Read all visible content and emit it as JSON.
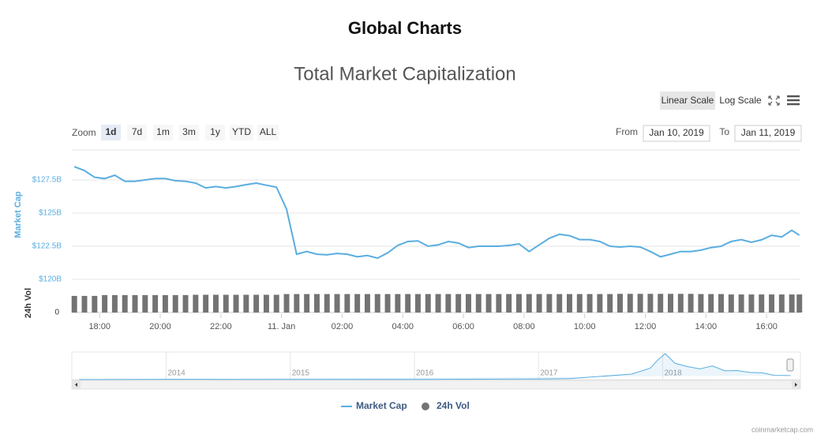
{
  "header": {
    "title": "Global Charts"
  },
  "controls": {
    "zoom_label": "Zoom",
    "zoom_buttons": [
      "1d",
      "7d",
      "1m",
      "3m",
      "1y",
      "YTD",
      "ALL"
    ],
    "selected_zoom": 0,
    "from_label": "From",
    "from": "Jan 10, 2019",
    "to_label": "To",
    "to": "Jan 11, 2019",
    "scale_buttons": [
      "Linear Scale",
      "Log Scale"
    ],
    "selected_scale": 0
  },
  "chart_data": {
    "type": "line",
    "title": "Total Market Capitalization",
    "y_label": "Market Cap",
    "y2_label": "24h Vol",
    "x": [
      "2019-01-10 17:10",
      "2019-01-10 17:30",
      "2019-01-10 17:50",
      "2019-01-10 18:10",
      "2019-01-10 18:30",
      "2019-01-10 18:50",
      "2019-01-10 19:10",
      "2019-01-10 19:30",
      "2019-01-10 19:50",
      "2019-01-10 20:10",
      "2019-01-10 20:30",
      "2019-01-10 20:50",
      "2019-01-10 21:10",
      "2019-01-10 21:30",
      "2019-01-10 21:50",
      "2019-01-10 22:10",
      "2019-01-10 22:30",
      "2019-01-10 22:50",
      "2019-01-10 23:10",
      "2019-01-10 23:30",
      "2019-01-10 23:50",
      "2019-01-11 00:10",
      "2019-01-11 00:30",
      "2019-01-11 00:50",
      "2019-01-11 01:10",
      "2019-01-11 01:30",
      "2019-01-11 01:50",
      "2019-01-11 02:10",
      "2019-01-11 02:30",
      "2019-01-11 02:50",
      "2019-01-11 03:10",
      "2019-01-11 03:30",
      "2019-01-11 03:50",
      "2019-01-11 04:10",
      "2019-01-11 04:30",
      "2019-01-11 04:50",
      "2019-01-11 05:10",
      "2019-01-11 05:30",
      "2019-01-11 05:50",
      "2019-01-11 06:10",
      "2019-01-11 06:30",
      "2019-01-11 06:50",
      "2019-01-11 07:10",
      "2019-01-11 07:30",
      "2019-01-11 07:50",
      "2019-01-11 08:10",
      "2019-01-11 08:30",
      "2019-01-11 08:50",
      "2019-01-11 09:10",
      "2019-01-11 09:30",
      "2019-01-11 09:50",
      "2019-01-11 10:10",
      "2019-01-11 10:30",
      "2019-01-11 10:50",
      "2019-01-11 11:10",
      "2019-01-11 11:30",
      "2019-01-11 11:50",
      "2019-01-11 12:10",
      "2019-01-11 12:30",
      "2019-01-11 12:50",
      "2019-01-11 13:10",
      "2019-01-11 13:30",
      "2019-01-11 13:50",
      "2019-01-11 14:10",
      "2019-01-11 14:30",
      "2019-01-11 14:50",
      "2019-01-11 15:10",
      "2019-01-11 15:30",
      "2019-01-11 15:50",
      "2019-01-11 16:10",
      "2019-01-11 16:30",
      "2019-01-11 16:50",
      "2019-01-11 17:05"
    ],
    "series": [
      {
        "name": "Market Cap",
        "color": "#5aade0",
        "values": [
          128500000000,
          128200000000,
          127700000000,
          127600000000,
          127860000000,
          127400000000,
          127400000000,
          127500000000,
          127600000000,
          127600000000,
          127440000000,
          127400000000,
          127260000000,
          126900000000,
          127000000000,
          126900000000,
          127000000000,
          127140000000,
          127260000000,
          127100000000,
          126960000000,
          125300000000,
          121900000000,
          122100000000,
          121900000000,
          121850000000,
          121960000000,
          121900000000,
          121700000000,
          121800000000,
          121600000000,
          122000000000,
          122560000000,
          122860000000,
          122900000000,
          122500000000,
          122600000000,
          122860000000,
          122740000000,
          122400000000,
          122500000000,
          122500000000,
          122500000000,
          122560000000,
          122680000000,
          122100000000,
          122600000000,
          123100000000,
          123400000000,
          123300000000,
          123000000000,
          123000000000,
          122860000000,
          122500000000,
          122440000000,
          122500000000,
          122440000000,
          122100000000,
          121700000000,
          121900000000,
          122100000000,
          122100000000,
          122200000000,
          122400000000,
          122500000000,
          122860000000,
          123000000000,
          122800000000,
          122980000000,
          123330000000,
          123200000000,
          123700000000,
          123330000000
        ]
      },
      {
        "name": "24h Vol",
        "color": "#737373",
        "type": "column",
        "axis": "y2",
        "values": [
          16200000000,
          16200000000,
          16200000000,
          17000000000,
          17000000000,
          17000000000,
          17000000000,
          17000000000,
          17000000000,
          17000000000,
          17000000000,
          17000000000,
          17300000000,
          17300000000,
          17300000000,
          17300000000,
          17300000000,
          17300000000,
          17300000000,
          17300000000,
          17300000000,
          18000000000,
          18000000000,
          18000000000,
          18000000000,
          18000000000,
          18000000000,
          18000000000,
          18000000000,
          18000000000,
          18000000000,
          18000000000,
          18000000000,
          18000000000,
          18000000000,
          18000000000,
          18000000000,
          18000000000,
          18000000000,
          18000000000,
          18000000000,
          18000000000,
          18000000000,
          18000000000,
          18000000000,
          18000000000,
          18000000000,
          18000000000,
          18000000000,
          18000000000,
          18000000000,
          18000000000,
          18000000000,
          18000000000,
          18200000000,
          18200000000,
          18200000000,
          18200000000,
          18200000000,
          18200000000,
          18200000000,
          18200000000,
          18000000000,
          18000000000,
          18000000000,
          17600000000,
          17600000000,
          17600000000,
          17600000000,
          17600000000,
          17600000000,
          17600000000,
          17600000000
        ]
      }
    ],
    "xlim": [
      "2019-01-10 17:05",
      "2019-01-11 17:07"
    ],
    "xticks": [
      {
        "value": "2019-01-10 18:00",
        "label": "18:00"
      },
      {
        "value": "2019-01-10 20:00",
        "label": "20:00"
      },
      {
        "value": "2019-01-10 22:00",
        "label": "22:00"
      },
      {
        "value": "2019-01-11 00:00",
        "label": "11. Jan"
      },
      {
        "value": "2019-01-11 02:00",
        "label": "02:00"
      },
      {
        "value": "2019-01-11 04:00",
        "label": "04:00"
      },
      {
        "value": "2019-01-11 06:00",
        "label": "06:00"
      },
      {
        "value": "2019-01-11 08:00",
        "label": "08:00"
      },
      {
        "value": "2019-01-11 10:00",
        "label": "10:00"
      },
      {
        "value": "2019-01-11 12:00",
        "label": "12:00"
      },
      {
        "value": "2019-01-11 14:00",
        "label": "14:00"
      },
      {
        "value": "2019-01-11 16:00",
        "label": "16:00"
      }
    ],
    "ylim": [
      120000000000,
      130000000000
    ],
    "yticks": [
      {
        "value": 120000000000,
        "label": "$120B"
      },
      {
        "value": 122500000000,
        "label": "$122.5B"
      },
      {
        "value": 125000000000,
        "label": "$125B"
      },
      {
        "value": 127500000000,
        "label": "$127.5B"
      }
    ],
    "y2lim": [
      0,
      20000000000
    ],
    "y2ticks": [
      0
    ],
    "grid": true,
    "navigator": {
      "x": [
        2013.3,
        2014,
        2014.5,
        2015,
        2015.5,
        2016,
        2016.5,
        2017,
        2017.25,
        2017.5,
        2017.75,
        2017.9,
        2017.96,
        2018.02,
        2018.1,
        2018.2,
        2018.3,
        2018.4,
        2018.5,
        2018.6,
        2018.7,
        2018.8,
        2018.9,
        2019.03
      ],
      "values": [
        2000000000,
        10000000000,
        8000000000,
        5000000000,
        4000000000,
        7000000000,
        12000000000,
        18000000000,
        30000000000,
        100000000000,
        170000000000,
        350000000000,
        600000000000,
        800000000000,
        500000000000,
        400000000000,
        330000000000,
        420000000000,
        270000000000,
        280000000000,
        220000000000,
        210000000000,
        130000000000,
        125000000000
      ],
      "xlim": [
        2013.24,
        2019.11
      ],
      "xticks": [
        2014,
        2015,
        2016,
        2017,
        2018
      ],
      "ylim": [
        0,
        850000000000
      ]
    }
  },
  "credit": "coinmarketcap.com"
}
